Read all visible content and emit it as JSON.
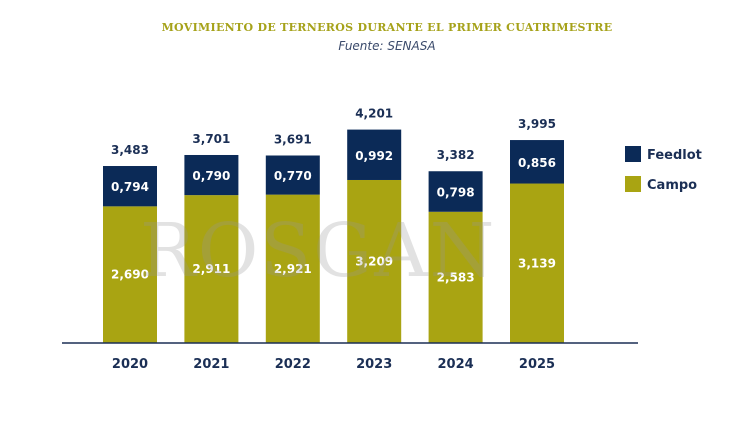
{
  "title": "MOVIMIENTO DE TERNEROS DURANTE EL PRIMER CUATRIMESTRE",
  "subtitle": "Fuente: SENASA",
  "watermark": "ROSGAN",
  "colors": {
    "feedlot": "#0b2a57",
    "campo": "#a9a412",
    "axis": "#1b2f55",
    "text": "#1b2f55"
  },
  "chart_data": {
    "type": "bar",
    "stacked": true,
    "categories": [
      "2020",
      "2021",
      "2022",
      "2023",
      "2024",
      "2025"
    ],
    "series": [
      {
        "name": "Campo",
        "values": [
          "2,690",
          "2,911",
          "2,921",
          "3,209",
          "2,583",
          "3,139"
        ]
      },
      {
        "name": "Feedlot",
        "values": [
          "0,794",
          "0,790",
          "0,770",
          "0,992",
          "0,798",
          "0,856"
        ]
      }
    ],
    "totals": [
      "3,483",
      "3,701",
      "3,691",
      "4,201",
      "3,382",
      "3,995"
    ],
    "legend": [
      "Feedlot",
      "Campo"
    ],
    "legend_position": "right",
    "grid": false
  }
}
